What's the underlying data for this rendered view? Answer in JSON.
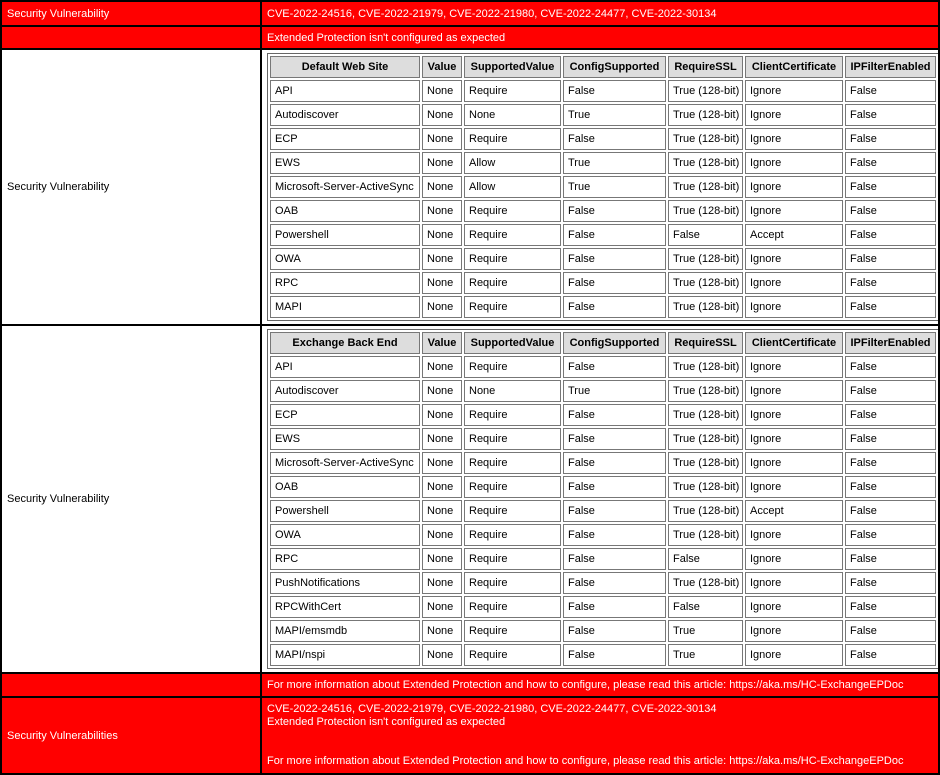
{
  "rows": {
    "r1": {
      "label": "Security Vulnerability",
      "text": "CVE-2022-24516, CVE-2022-21979, CVE-2022-21980, CVE-2022-24477, CVE-2022-30134"
    },
    "r2": {
      "text": "Extended Protection isn't configured as expected"
    },
    "r3": {
      "label": "Security Vulnerability"
    },
    "r4": {
      "label": "Security Vulnerability"
    },
    "r5": {
      "text": "For more information about Extended Protection and how to configure, please read this article: https://aka.ms/HC-ExchangeEPDoc"
    },
    "r6": {
      "label": "Security Vulnerabilities",
      "line1": "CVE-2022-24516, CVE-2022-21979, CVE-2022-21980, CVE-2022-24477, CVE-2022-30134",
      "line2": "Extended Protection isn't configured as expected",
      "line3": "For more information about Extended Protection and how to configure, please read this article: https://aka.ms/HC-ExchangeEPDoc"
    }
  },
  "colors": {
    "alert": "#ff0000",
    "header_bg": "#dddddd"
  },
  "tables": [
    {
      "headers": [
        "Default Web Site",
        "Value",
        "SupportedValue",
        "ConfigSupported",
        "RequireSSL",
        "ClientCertificate",
        "IPFilterEnabled"
      ],
      "rows": [
        [
          "API",
          "None",
          "Require",
          "False",
          "True (128-bit)",
          "Ignore",
          "False"
        ],
        [
          "Autodiscover",
          "None",
          "None",
          "True",
          "True (128-bit)",
          "Ignore",
          "False"
        ],
        [
          "ECP",
          "None",
          "Require",
          "False",
          "True (128-bit)",
          "Ignore",
          "False"
        ],
        [
          "EWS",
          "None",
          "Allow",
          "True",
          "True (128-bit)",
          "Ignore",
          "False"
        ],
        [
          "Microsoft-Server-ActiveSync",
          "None",
          "Allow",
          "True",
          "True (128-bit)",
          "Ignore",
          "False"
        ],
        [
          "OAB",
          "None",
          "Require",
          "False",
          "True (128-bit)",
          "Ignore",
          "False"
        ],
        [
          "Powershell",
          "None",
          "Require",
          "False",
          "False",
          "Accept",
          "False"
        ],
        [
          "OWA",
          "None",
          "Require",
          "False",
          "True (128-bit)",
          "Ignore",
          "False"
        ],
        [
          "RPC",
          "None",
          "Require",
          "False",
          "True (128-bit)",
          "Ignore",
          "False"
        ],
        [
          "MAPI",
          "None",
          "Require",
          "False",
          "True (128-bit)",
          "Ignore",
          "False"
        ]
      ]
    },
    {
      "headers": [
        "Exchange Back End",
        "Value",
        "SupportedValue",
        "ConfigSupported",
        "RequireSSL",
        "ClientCertificate",
        "IPFilterEnabled"
      ],
      "rows": [
        [
          "API",
          "None",
          "Require",
          "False",
          "True (128-bit)",
          "Ignore",
          "False"
        ],
        [
          "Autodiscover",
          "None",
          "None",
          "True",
          "True (128-bit)",
          "Ignore",
          "False"
        ],
        [
          "ECP",
          "None",
          "Require",
          "False",
          "True (128-bit)",
          "Ignore",
          "False"
        ],
        [
          "EWS",
          "None",
          "Require",
          "False",
          "True (128-bit)",
          "Ignore",
          "False"
        ],
        [
          "Microsoft-Server-ActiveSync",
          "None",
          "Require",
          "False",
          "True (128-bit)",
          "Ignore",
          "False"
        ],
        [
          "OAB",
          "None",
          "Require",
          "False",
          "True (128-bit)",
          "Ignore",
          "False"
        ],
        [
          "Powershell",
          "None",
          "Require",
          "False",
          "True (128-bit)",
          "Accept",
          "False"
        ],
        [
          "OWA",
          "None",
          "Require",
          "False",
          "True (128-bit)",
          "Ignore",
          "False"
        ],
        [
          "RPC",
          "None",
          "Require",
          "False",
          "False",
          "Ignore",
          "False"
        ],
        [
          "PushNotifications",
          "None",
          "Require",
          "False",
          "True (128-bit)",
          "Ignore",
          "False"
        ],
        [
          "RPCWithCert",
          "None",
          "Require",
          "False",
          "False",
          "Ignore",
          "False"
        ],
        [
          "MAPI/emsmdb",
          "None",
          "Require",
          "False",
          "True",
          "Ignore",
          "False"
        ],
        [
          "MAPI/nspi",
          "None",
          "Require",
          "False",
          "True",
          "Ignore",
          "False"
        ]
      ]
    }
  ]
}
